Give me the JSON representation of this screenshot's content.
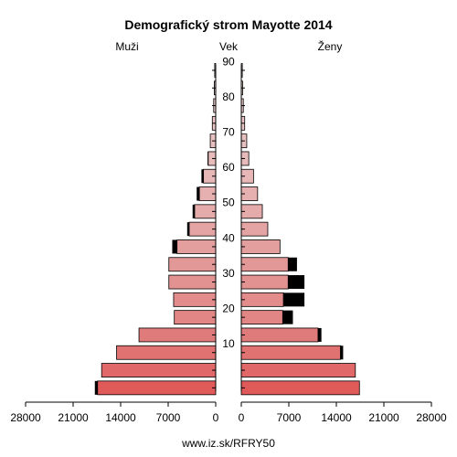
{
  "chart_data": {
    "type": "bar",
    "title": "Demografický strom Mayotte 2014",
    "left_label": "Muži",
    "center_label": "Vek",
    "right_label": "Ženy",
    "footer": "www.iz.sk/RFRY50",
    "age_groups": [
      "0-4",
      "5-9",
      "10-14",
      "15-19",
      "20-24",
      "25-29",
      "30-34",
      "35-39",
      "40-44",
      "45-49",
      "50-54",
      "55-59",
      "60-64",
      "65-69",
      "70-74",
      "75-79",
      "80-84",
      "85-89",
      "90+"
    ],
    "age_tick_labels": [
      "10",
      "20",
      "30",
      "40",
      "50",
      "60",
      "70",
      "80",
      "90"
    ],
    "x_tick_labels_left": [
      "28000",
      "21000",
      "14000",
      "7000",
      "0"
    ],
    "x_tick_labels_right": [
      "0",
      "7000",
      "14000",
      "21000",
      "28000"
    ],
    "xlim": [
      0,
      28000
    ],
    "series": [
      {
        "name": "Muži",
        "values": [
          17400,
          16800,
          14600,
          11300,
          6100,
          6200,
          6900,
          6900,
          5700,
          3900,
          3100,
          2400,
          1800,
          1100,
          800,
          500,
          300,
          200,
          150
        ],
        "excess": [
          400,
          0,
          0,
          0,
          0,
          0,
          0,
          0,
          700,
          300,
          300,
          400,
          300,
          100,
          0,
          0,
          0,
          50,
          50
        ]
      },
      {
        "name": "Ženy",
        "values": [
          17400,
          16800,
          14600,
          11300,
          6100,
          6200,
          6900,
          6900,
          5700,
          3900,
          3100,
          2400,
          1800,
          1100,
          800,
          500,
          300,
          200,
          150
        ],
        "excess": [
          0,
          0,
          400,
          500,
          1500,
          3100,
          2400,
          1300,
          0,
          0,
          0,
          0,
          0,
          0,
          0,
          0,
          0,
          0,
          0
        ]
      }
    ],
    "colors": [
      "#e05a5a",
      "#e06868",
      "#e07272",
      "#e07b7b",
      "#e28585",
      "#e28c8c",
      "#e39292",
      "#e39898",
      "#e39e9e",
      "#e4a4a4",
      "#e5aaaa",
      "#e6b0b0",
      "#e7b6b6",
      "#e8bbbb",
      "#e9c0c0",
      "#eac4c4",
      "#ebc9c9",
      "#eccdcd",
      "#edd1d1"
    ],
    "excess_color": "#000000"
  }
}
